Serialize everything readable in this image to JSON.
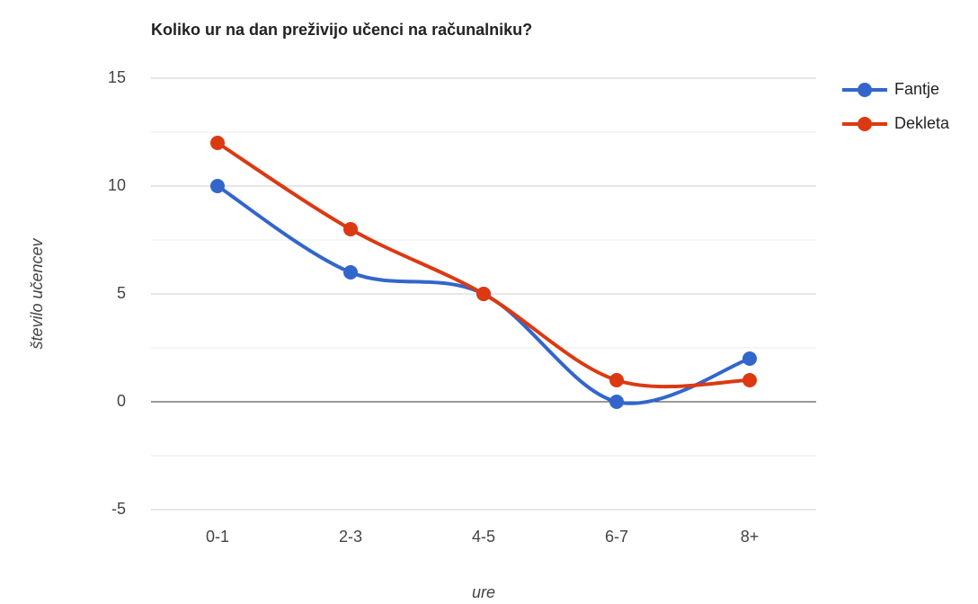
{
  "chart_data": {
    "type": "line",
    "title": "Koliko ur na dan preživijo učenci na računalniku?",
    "x_label": "ure",
    "y_label": "število učencev",
    "categories": [
      "0-1",
      "2-3",
      "4-5",
      "6-7",
      "8+"
    ],
    "series": [
      {
        "name": "Fantje",
        "color": "#3366cc",
        "values": [
          10,
          6,
          5,
          0,
          2
        ]
      },
      {
        "name": "Dekleta",
        "color": "#dc3912",
        "values": [
          12,
          8,
          5,
          1,
          1
        ]
      }
    ],
    "ylim": [
      -5,
      15
    ],
    "yticks": [
      -5,
      0,
      5,
      10,
      15
    ],
    "yminorticks": [
      -2.5,
      2.5,
      7.5,
      12.5
    ],
    "grid": true,
    "smooth": true,
    "legend": "right"
  }
}
